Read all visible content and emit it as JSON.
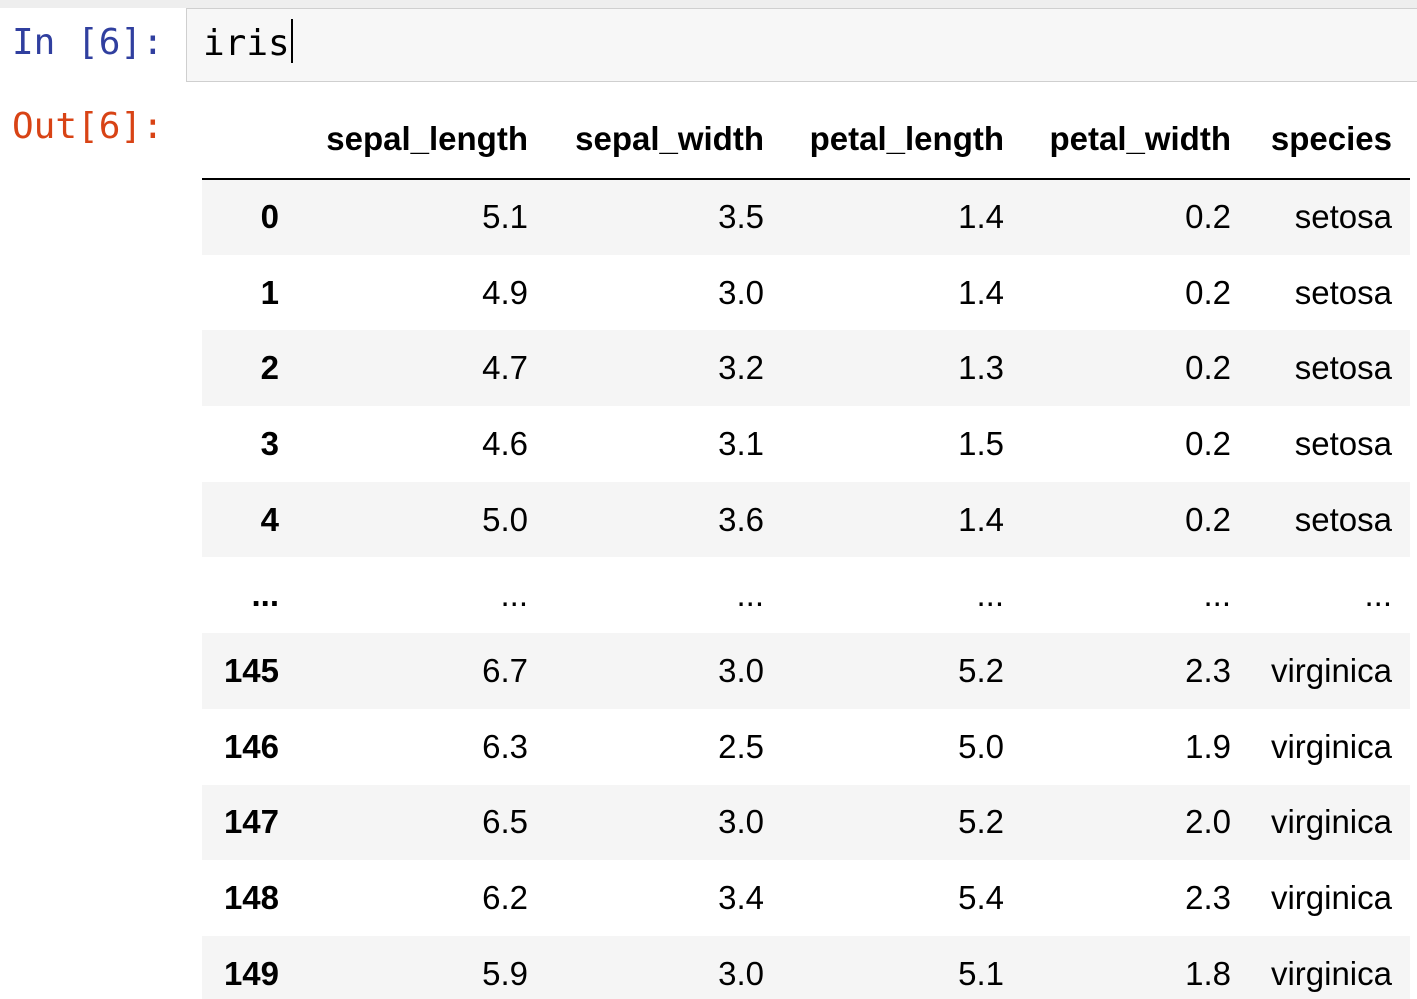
{
  "input_cell": {
    "prompt": "In [6]:",
    "code": "iris"
  },
  "output_cell": {
    "prompt": "Out[6]:"
  },
  "dataframe": {
    "columns": [
      "",
      "sepal_length",
      "sepal_width",
      "petal_length",
      "petal_width",
      "species"
    ],
    "rows": [
      [
        "0",
        "5.1",
        "3.5",
        "1.4",
        "0.2",
        "setosa"
      ],
      [
        "1",
        "4.9",
        "3.0",
        "1.4",
        "0.2",
        "setosa"
      ],
      [
        "2",
        "4.7",
        "3.2",
        "1.3",
        "0.2",
        "setosa"
      ],
      [
        "3",
        "4.6",
        "3.1",
        "1.5",
        "0.2",
        "setosa"
      ],
      [
        "4",
        "5.0",
        "3.6",
        "1.4",
        "0.2",
        "setosa"
      ],
      [
        "...",
        "...",
        "...",
        "...",
        "...",
        "..."
      ],
      [
        "145",
        "6.7",
        "3.0",
        "5.2",
        "2.3",
        "virginica"
      ],
      [
        "146",
        "6.3",
        "2.5",
        "5.0",
        "1.9",
        "virginica"
      ],
      [
        "147",
        "6.5",
        "3.0",
        "5.2",
        "2.0",
        "virginica"
      ],
      [
        "148",
        "6.2",
        "3.4",
        "5.4",
        "2.3",
        "virginica"
      ],
      [
        "149",
        "5.9",
        "3.0",
        "5.1",
        "1.8",
        "virginica"
      ]
    ]
  },
  "colors": {
    "in_prompt": "#303f9f",
    "out_prompt": "#d84315",
    "input_background": "#f7f7f7",
    "stripe_row": "#f5f5f5"
  }
}
